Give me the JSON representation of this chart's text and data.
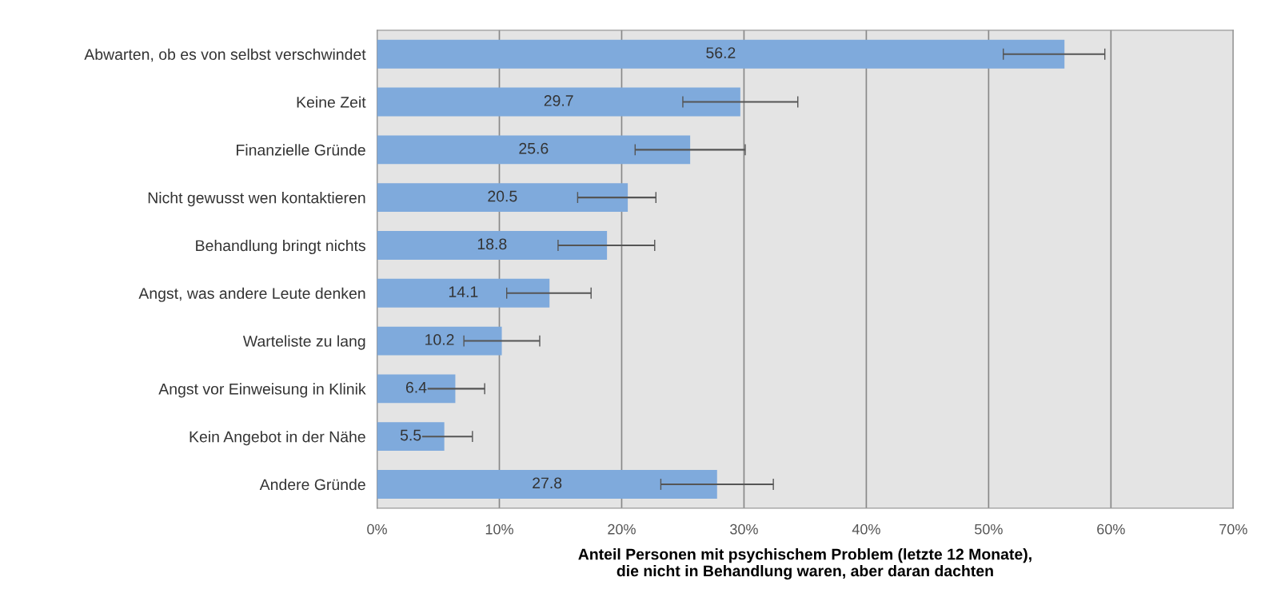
{
  "chart_data": {
    "type": "bar",
    "orientation": "horizontal",
    "categories": [
      "Abwarten, ob es von selbst verschwindet",
      "Keine Zeit",
      "Finanzielle Gründe",
      "Nicht gewusst wen kontaktieren",
      "Behandlung bringt nichts",
      "Angst, was andere Leute denken",
      "Warteliste zu lang",
      "Angst vor Einweisung in Klinik",
      "Kein Angebot in der Nähe",
      "Andere Gründe"
    ],
    "values": [
      56.2,
      29.7,
      25.6,
      20.5,
      18.8,
      14.1,
      10.2,
      6.4,
      5.5,
      27.8
    ],
    "errors": [
      [
        51.2,
        59.5
      ],
      [
        25.0,
        34.4
      ],
      [
        21.1,
        30.1
      ],
      [
        16.4,
        22.8
      ],
      [
        14.8,
        22.7
      ],
      [
        10.6,
        17.5
      ],
      [
        7.1,
        13.3
      ],
      [
        3.9,
        8.8
      ],
      [
        3.1,
        7.8
      ],
      [
        23.2,
        32.4
      ]
    ],
    "color": "#7faadc",
    "data_labels": true,
    "xlim": [
      0,
      70
    ],
    "xticks": [
      {
        "value": 0,
        "label": "0%"
      },
      {
        "value": 10,
        "label": "10%"
      },
      {
        "value": 20,
        "label": "20%"
      },
      {
        "value": 30,
        "label": "30%"
      },
      {
        "value": 40,
        "label": "40%"
      },
      {
        "value": 50,
        "label": "50%"
      },
      {
        "value": 60,
        "label": "60%"
      },
      {
        "value": 70,
        "label": "70%"
      }
    ],
    "xlabel": "Anteil Personen mit psychischem Problem (letzte 12 Monate),\ndie nicht in Behandlung waren, aber daran dachten",
    "grid": "x"
  }
}
